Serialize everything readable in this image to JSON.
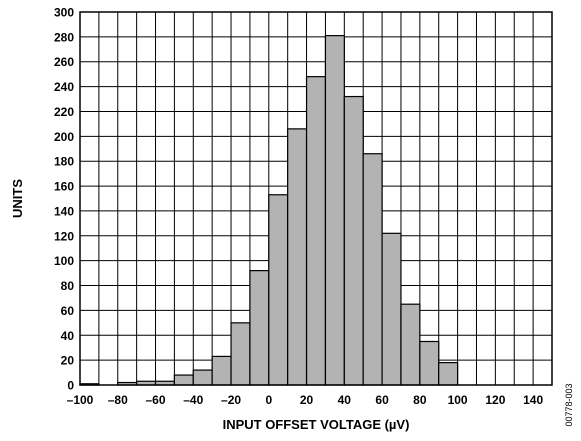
{
  "chart_data": {
    "type": "bar",
    "bin_width": 10,
    "bin_starts": [
      -100,
      -90,
      -80,
      -70,
      -60,
      -50,
      -40,
      -30,
      -20,
      -10,
      0,
      10,
      20,
      30,
      40,
      50,
      60,
      70,
      80,
      90,
      100,
      110,
      120,
      130,
      140
    ],
    "values": [
      1,
      0,
      2,
      3,
      3,
      8,
      12,
      23,
      50,
      92,
      153,
      206,
      248,
      281,
      232,
      186,
      122,
      65,
      35,
      18,
      0,
      0,
      0,
      0,
      0
    ],
    "xlabel": "INPUT OFFSET VOLTAGE (µV)",
    "ylabel": "UNITS",
    "xlim": [
      -100,
      150
    ],
    "ylim": [
      0,
      300
    ],
    "x_ticks": [
      -100,
      -80,
      -60,
      -40,
      -20,
      0,
      20,
      40,
      60,
      80,
      100,
      120,
      140
    ],
    "x_tick_labels": [
      "–100",
      "–80",
      "–60",
      "–40",
      "–20",
      "0",
      "20",
      "40",
      "60",
      "80",
      "100",
      "120",
      "140"
    ],
    "y_ticks": [
      0,
      20,
      40,
      60,
      80,
      100,
      120,
      140,
      160,
      180,
      200,
      220,
      240,
      260,
      280,
      300
    ],
    "y_tick_labels": [
      "0",
      "20",
      "40",
      "60",
      "80",
      "100",
      "120",
      "140",
      "160",
      "180",
      "200",
      "220",
      "240",
      "260",
      "280",
      "300"
    ],
    "x_gridlines_every": 10,
    "y_gridlines_every": 20,
    "grid": true,
    "legend": "none",
    "bar_color": "#b3b3b3",
    "edge_color": "#000000",
    "figure_code": "00778-003"
  }
}
